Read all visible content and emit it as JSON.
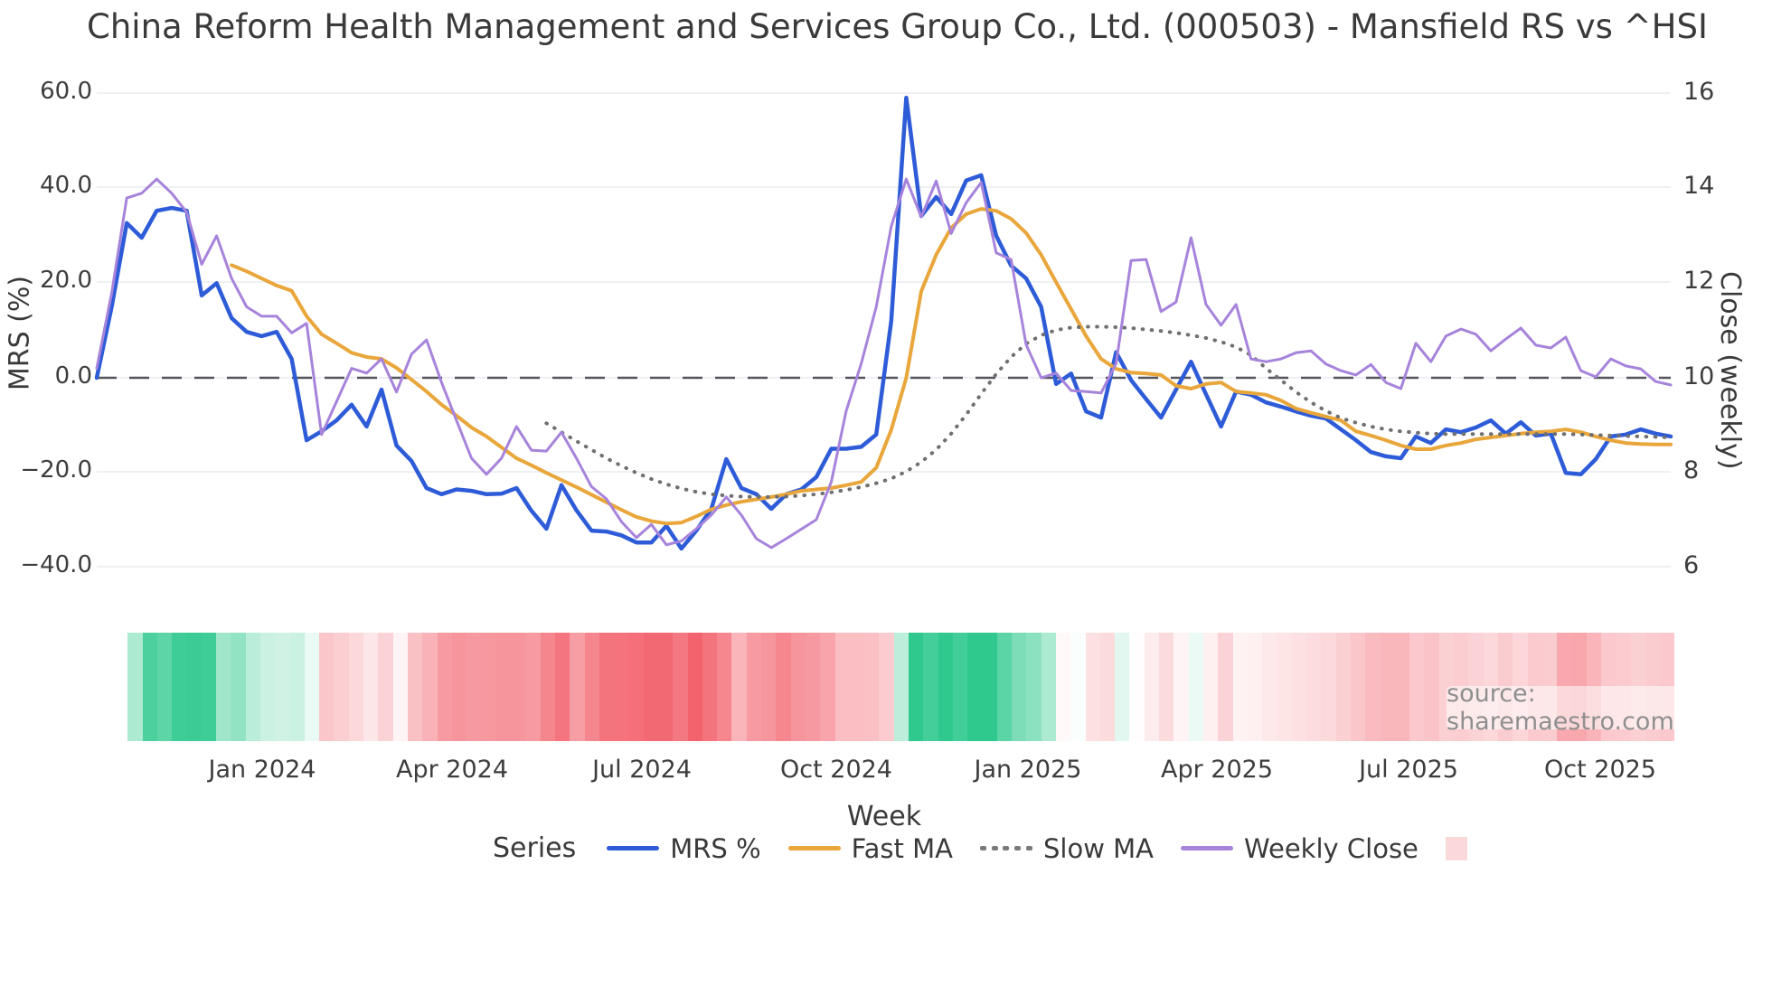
{
  "title": "China Reform Health Management and Services Group Co., Ltd. (000503) - Mansfield RS vs ^HSI",
  "watermark": "source: sharemaestro.com",
  "axes": {
    "left": {
      "label": "MRS (%)",
      "ticks": [
        "60.0",
        "40.0",
        "20.0",
        "0.0",
        "−20.0",
        "−40.0"
      ]
    },
    "right": {
      "label": "Close (weekly)",
      "ticks": [
        "16",
        "14",
        "12",
        "10",
        "8",
        "6"
      ]
    },
    "x": {
      "label": "Week",
      "ticks": [
        "Jan 2024",
        "Apr 2024",
        "Jul 2024",
        "Oct 2024",
        "Jan 2025",
        "Apr 2025",
        "Jul 2025",
        "Oct 2025"
      ]
    }
  },
  "legend": {
    "title": "Series",
    "items": [
      {
        "label": "MRS %",
        "swatch": "line",
        "color": "#2E5CD8"
      },
      {
        "label": "Fast MA",
        "swatch": "line",
        "color": "#E9A63B"
      },
      {
        "label": "Slow MA",
        "swatch": "dotted",
        "color": "#7a7a7a"
      },
      {
        "label": "Weekly Close",
        "swatch": "line",
        "color": "#A783DB"
      },
      {
        "label": "",
        "swatch": "square",
        "color": "#FBD8DA"
      }
    ]
  },
  "chart_data": {
    "type": "line",
    "title": "China Reform Health Management and Services Group Co., Ltd. (000503) - Mansfield RS vs ^HSI",
    "xlabel": "Week",
    "x_unit": "week",
    "start_week": "2023-10-23",
    "n_weeks": 106,
    "x_tick_labels": [
      "Jan 2024",
      "Apr 2024",
      "Jul 2024",
      "Oct 2024",
      "Jan 2025",
      "Apr 2025",
      "Jul 2025",
      "Oct 2025"
    ],
    "ylabel_left": "MRS (%)",
    "ylim_left": [
      -40,
      60
    ],
    "yticks_left": [
      60.0,
      40.0,
      20.0,
      0.0,
      -20.0,
      -40.0
    ],
    "ylabel_right": "Close (weekly)",
    "ylim_right": [
      6,
      16
    ],
    "yticks_right": [
      16,
      14,
      12,
      10,
      8,
      6
    ],
    "zero_reference_line": 0,
    "grid": true,
    "legend_position": "bottom",
    "series": [
      {
        "name": "MRS %",
        "axis": "left",
        "color": "#2E5CD8",
        "style": "solid",
        "values": [
          0,
          15.1,
          32.7,
          29.6,
          35.3,
          35.9,
          35.3,
          17.4,
          20.0,
          12.6,
          9.7,
          8.8,
          9.7,
          4.0,
          -13.2,
          -11.3,
          -9.0,
          -5.7,
          -10.3,
          -2.5,
          -14.3,
          -17.6,
          -23.3,
          -24.6,
          -23.6,
          -23.9,
          -24.6,
          -24.5,
          -23.3,
          -28.1,
          -31.9,
          -22.7,
          -28.0,
          -32.3,
          -32.5,
          -33.3,
          -34.8,
          -34.8,
          -31.3,
          -36.1,
          -32.3,
          -27.7,
          -17.2,
          -23.3,
          -24.6,
          -27.7,
          -24.6,
          -23.6,
          -21.0,
          -15.0,
          -15.0,
          -14.6,
          -12.0,
          12.0,
          59.2,
          34.2,
          38.2,
          34.6,
          41.7,
          42.8,
          30.0,
          23.7,
          21.0,
          15.0,
          -1.3,
          0.9,
          -7.1,
          -8.4,
          5.4,
          -0.5,
          -4.5,
          -8.4,
          -2.5,
          3.4,
          -3.5,
          -10.3,
          -2.9,
          -3.6,
          -5.2,
          -6.1,
          -7.1,
          -8.0,
          -8.6,
          -10.9,
          -13.2,
          -15.7,
          -16.6,
          -17.0,
          -12.4,
          -13.8,
          -10.9,
          -11.5,
          -10.5,
          -9.0,
          -11.8,
          -9.4,
          -12.2,
          -11.8,
          -20.1,
          -20.4,
          -17.2,
          -12.4,
          -12.0,
          -10.9,
          -11.8,
          -12.4
        ]
      },
      {
        "name": "Fast MA",
        "axis": "left",
        "color": "#E9A63B",
        "style": "solid",
        "values": [
          null,
          null,
          null,
          null,
          null,
          null,
          null,
          null,
          null,
          23.8,
          22.5,
          21.0,
          19.5,
          18.4,
          13.0,
          9.2,
          7.3,
          5.3,
          4.4,
          4.0,
          2.1,
          -0.4,
          -2.9,
          -5.7,
          -8.0,
          -10.5,
          -12.4,
          -14.7,
          -17.0,
          -18.5,
          -20.1,
          -21.6,
          -23.1,
          -24.7,
          -26.3,
          -27.9,
          -29.4,
          -30.3,
          -30.8,
          -30.6,
          -29.3,
          -27.8,
          -26.9,
          -26.2,
          -25.7,
          -25.2,
          -24.6,
          -23.9,
          -23.6,
          -23.3,
          -22.7,
          -22.0,
          -19.0,
          -11.0,
          0.0,
          18.3,
          26.0,
          31.7,
          34.6,
          35.7,
          35.3,
          33.6,
          30.6,
          26.0,
          20.2,
          14.5,
          8.8,
          4.0,
          1.9,
          1.1,
          0.9,
          0.6,
          -1.7,
          -2.3,
          -1.3,
          -1.0,
          -2.9,
          -3.2,
          -3.6,
          -4.8,
          -6.5,
          -7.4,
          -8.2,
          -9.0,
          -11.3,
          -12.2,
          -13.2,
          -14.3,
          -15.1,
          -15.1,
          -14.3,
          -13.8,
          -13.0,
          -12.6,
          -12.2,
          -11.8,
          -11.5,
          -11.3,
          -10.9,
          -11.5,
          -12.4,
          -13.2,
          -13.8,
          -14.0,
          -14.1,
          -14.1
        ]
      },
      {
        "name": "Slow MA",
        "axis": "left",
        "color": "#707070",
        "style": "dotted",
        "values": [
          null,
          null,
          null,
          null,
          null,
          null,
          null,
          null,
          null,
          null,
          null,
          null,
          null,
          null,
          null,
          null,
          null,
          null,
          null,
          null,
          null,
          null,
          null,
          null,
          null,
          null,
          null,
          null,
          null,
          null,
          -9.6,
          -11.5,
          -13.4,
          -15.2,
          -17.0,
          -18.6,
          -20.1,
          -21.4,
          -22.5,
          -23.4,
          -24.1,
          -24.6,
          -24.9,
          -25.1,
          -25.2,
          -25.2,
          -25.1,
          -24.9,
          -24.6,
          -24.2,
          -23.7,
          -23.1,
          -22.3,
          -21.3,
          -19.8,
          -17.8,
          -15.2,
          -11.8,
          -7.8,
          -3.4,
          0.8,
          4.4,
          7.2,
          9.0,
          10.1,
          10.6,
          10.8,
          10.8,
          10.7,
          10.5,
          10.2,
          9.9,
          9.5,
          9.0,
          8.4,
          7.6,
          6.5,
          4.8,
          2.0,
          -0.5,
          -3.0,
          -5.2,
          -7.0,
          -8.5,
          -9.5,
          -10.3,
          -10.9,
          -11.3,
          -11.6,
          -11.8,
          -11.9,
          -11.9,
          -11.9,
          -11.9,
          -11.9,
          -11.9,
          -11.9,
          -11.9,
          -11.9,
          -12.0,
          -12.1,
          -12.2,
          -12.3,
          -12.4,
          -12.5,
          -12.6
        ]
      },
      {
        "name": "Weekly Close",
        "axis": "right",
        "color": "#A783DB",
        "style": "solid",
        "values": [
          10.2,
          11.8,
          13.8,
          13.9,
          14.2,
          13.9,
          13.5,
          12.4,
          13.0,
          12.1,
          11.5,
          11.3,
          11.3,
          10.95,
          11.15,
          8.8,
          9.5,
          10.2,
          10.1,
          10.4,
          9.7,
          10.5,
          10.8,
          9.9,
          9.1,
          8.3,
          7.96,
          8.3,
          8.97,
          8.47,
          8.45,
          8.85,
          8.3,
          7.7,
          7.44,
          6.96,
          6.62,
          6.9,
          6.47,
          6.55,
          6.81,
          7.1,
          7.48,
          7.1,
          6.6,
          6.41,
          6.6,
          6.8,
          7.0,
          7.8,
          9.3,
          10.3,
          11.5,
          13.2,
          14.2,
          13.4,
          14.16,
          13.05,
          13.7,
          14.13,
          12.64,
          12.5,
          10.7,
          10.0,
          10.1,
          9.73,
          9.71,
          9.68,
          10.3,
          12.48,
          12.5,
          11.4,
          11.6,
          12.96,
          11.55,
          11.11,
          11.55,
          10.4,
          10.34,
          10.4,
          10.53,
          10.57,
          10.29,
          10.15,
          10.06,
          10.28,
          9.9,
          9.77,
          10.73,
          10.34,
          10.88,
          11.03,
          10.92,
          10.57,
          10.82,
          11.05,
          10.69,
          10.63,
          10.86,
          10.15,
          10.02,
          10.4,
          10.25,
          10.19,
          9.92,
          9.85
        ]
      }
    ],
    "heatmap": {
      "derived_from": "MRS %",
      "palette_negative": "#F25B66",
      "palette_zero": "#FFFFFF",
      "palette_positive": "#2FC98E",
      "position": "below-x-axis"
    }
  }
}
